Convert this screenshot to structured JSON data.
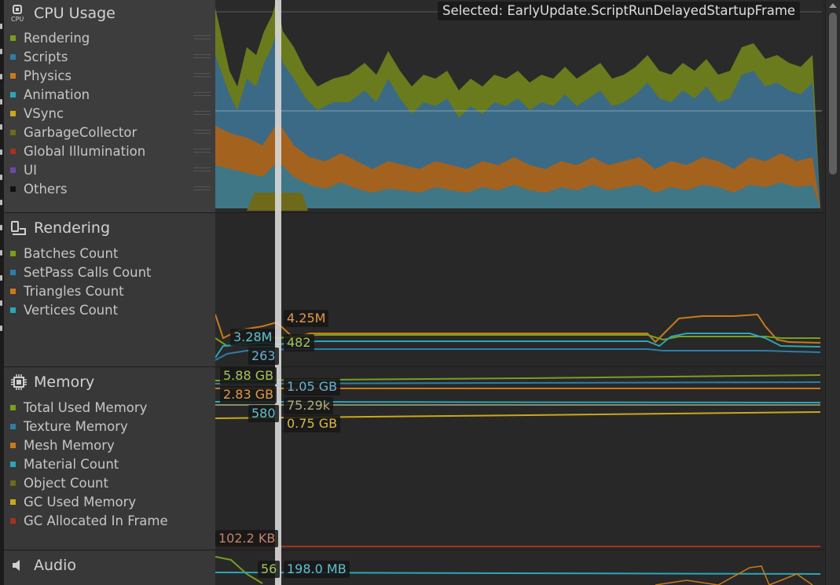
{
  "selected": {
    "text": "Selected: EarlyUpdate.ScriptRunDelayedStartupFrame"
  },
  "sections": {
    "cpu": {
      "title": "CPU Usage",
      "icon": "cpu-icon",
      "items": [
        {
          "label": "Rendering",
          "color": "#7a9e1d"
        },
        {
          "label": "Scripts",
          "color": "#2b7ea8"
        },
        {
          "label": "Physics",
          "color": "#c87a1a"
        },
        {
          "label": "Animation",
          "color": "#2aa6b8"
        },
        {
          "label": "VSync",
          "color": "#c9a81a"
        },
        {
          "label": "GarbageCollector",
          "color": "#6e6a1a"
        },
        {
          "label": "Global Illumination",
          "color": "#a3331f"
        },
        {
          "label": "UI",
          "color": "#6a4aa8"
        },
        {
          "label": "Others",
          "color": "#111111"
        }
      ]
    },
    "rendering": {
      "title": "Rendering",
      "icon": "rendering-icon",
      "items": [
        {
          "label": "Batches Count",
          "color": "#7a9e1d"
        },
        {
          "label": "SetPass Calls Count",
          "color": "#2b7ea8"
        },
        {
          "label": "Triangles Count",
          "color": "#c87a1a"
        },
        {
          "label": "Vertices Count",
          "color": "#2aa6b8"
        }
      ],
      "values": {
        "triangles": "4.25M",
        "vertices": "3.28M",
        "batches": "482",
        "setpass": "263"
      }
    },
    "memory": {
      "title": "Memory",
      "icon": "memory-chip-icon",
      "items": [
        {
          "label": "Total Used Memory",
          "color": "#7a9e1d"
        },
        {
          "label": "Texture Memory",
          "color": "#2b7ea8"
        },
        {
          "label": "Mesh Memory",
          "color": "#c87a1a"
        },
        {
          "label": "Material Count",
          "color": "#2aa6b8"
        },
        {
          "label": "Object Count",
          "color": "#6e6a1a"
        },
        {
          "label": "GC Used Memory",
          "color": "#c9a81a"
        },
        {
          "label": "GC Allocated In Frame",
          "color": "#a3331f"
        }
      ],
      "values": {
        "total_used": "5.88 GB",
        "texture": "1.05 GB",
        "mesh": "2.83 GB",
        "object_count": "75.29k",
        "material_count": "580",
        "gc_used": "0.75 GB",
        "gc_alloc": "102.2 KB"
      }
    },
    "audio": {
      "title": "Audio",
      "icon": "speaker-icon",
      "values": {
        "count": "56",
        "memory": "198.0 MB"
      }
    }
  }
}
